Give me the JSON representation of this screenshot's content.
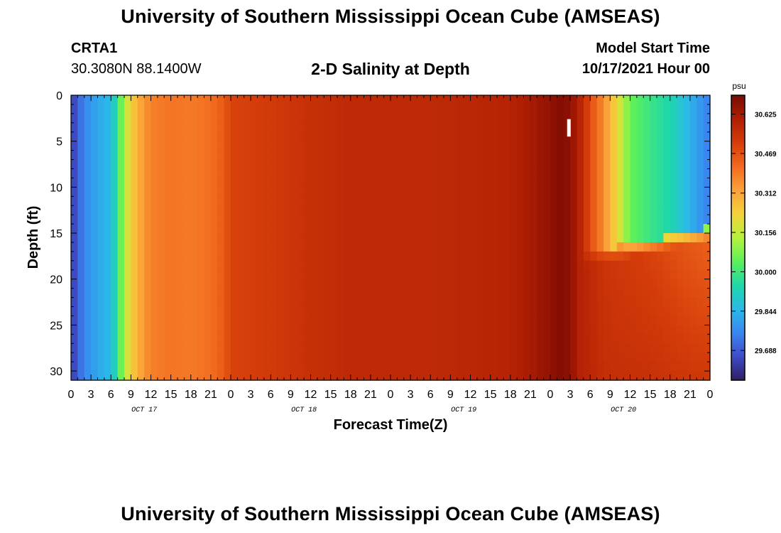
{
  "header": {
    "title": "University of Southern Mississippi Ocean Cube (AMSEAS)",
    "station_id": "CRTA1",
    "station_coords": "30.3080N  88.1400W",
    "plot_title": "2-D Salinity at Depth",
    "start_label": "Model Start Time",
    "start_value": "10/17/2021 Hour 00"
  },
  "footer": {
    "title": "University of Southern Mississippi Ocean Cube (AMSEAS)"
  },
  "chart_data": {
    "type": "heatmap",
    "title": "2-D Salinity at Depth",
    "xlabel": "Forecast Time(Z)",
    "ylabel": "Depth (ft)",
    "x_unit": "forecast hour from 10/17/2021 00Z",
    "xlim": [
      0,
      96
    ],
    "ylim": [
      0,
      31
    ],
    "y_inverted": true,
    "x_tick_labels": [
      "0",
      "3",
      "6",
      "9",
      "12",
      "15",
      "18",
      "21",
      "0",
      "3",
      "6",
      "9",
      "12",
      "15",
      "18",
      "21",
      "0",
      "3",
      "6",
      "9",
      "12",
      "15",
      "18",
      "21",
      "0",
      "3",
      "6",
      "9",
      "12",
      "15",
      "18",
      "21",
      "0"
    ],
    "x_tick_hours": [
      0,
      3,
      6,
      9,
      12,
      15,
      18,
      21,
      24,
      27,
      30,
      33,
      36,
      39,
      42,
      45,
      48,
      51,
      54,
      57,
      60,
      63,
      66,
      69,
      72,
      75,
      78,
      81,
      84,
      87,
      90,
      93,
      96
    ],
    "date_labels": [
      {
        "text": "OCT 17",
        "hour": 11
      },
      {
        "text": "OCT 18",
        "hour": 35
      },
      {
        "text": "OCT 19",
        "hour": 59
      },
      {
        "text": "OCT 20",
        "hour": 83
      }
    ],
    "y_ticks": [
      0,
      5,
      10,
      15,
      20,
      25,
      30
    ],
    "colorbar": {
      "unit": "psu",
      "min": 29.57,
      "max": 30.7,
      "tick_values": [
        29.688,
        29.844,
        30.0,
        30.156,
        30.312,
        30.469,
        30.625
      ],
      "tick_labels": [
        "29.688",
        "29.844",
        "30.000",
        "30.156",
        "30.312",
        "30.469",
        "30.625"
      ],
      "colors": [
        "#2e1e66",
        "#3e4cc6",
        "#3a86f0",
        "#2ab9e8",
        "#1fd8a8",
        "#5ef05a",
        "#b6f23c",
        "#f3d23a",
        "#fba23a",
        "#f26a1e",
        "#d43d0a",
        "#b01e04",
        "#7a0a02"
      ]
    },
    "surface_salinity_by_hour": [
      {
        "hour": 0,
        "value": 29.62
      },
      {
        "hour": 1,
        "value": 29.7
      },
      {
        "hour": 2,
        "value": 29.76
      },
      {
        "hour": 4,
        "value": 29.82
      },
      {
        "hour": 6,
        "value": 29.86
      },
      {
        "hour": 7,
        "value": 29.96
      },
      {
        "hour": 8,
        "value": 30.15
      },
      {
        "hour": 9,
        "value": 30.22
      },
      {
        "hour": 10,
        "value": 30.3
      },
      {
        "hour": 12,
        "value": 30.38
      },
      {
        "hour": 15,
        "value": 30.4
      },
      {
        "hour": 18,
        "value": 30.39
      },
      {
        "hour": 21,
        "value": 30.41
      },
      {
        "hour": 23,
        "value": 30.45
      },
      {
        "hour": 24,
        "value": 30.5
      },
      {
        "hour": 30,
        "value": 30.52
      },
      {
        "hour": 36,
        "value": 30.55
      },
      {
        "hour": 42,
        "value": 30.57
      },
      {
        "hour": 48,
        "value": 30.57
      },
      {
        "hour": 54,
        "value": 30.57
      },
      {
        "hour": 60,
        "value": 30.58
      },
      {
        "hour": 66,
        "value": 30.59
      },
      {
        "hour": 69,
        "value": 30.62
      },
      {
        "hour": 72,
        "value": 30.66
      },
      {
        "hour": 74,
        "value": 30.69
      },
      {
        "hour": 76,
        "value": 30.62
      },
      {
        "hour": 78,
        "value": 30.48
      },
      {
        "hour": 80,
        "value": 30.36
      },
      {
        "hour": 82,
        "value": 30.22
      },
      {
        "hour": 84,
        "value": 30.05
      },
      {
        "hour": 87,
        "value": 29.99
      },
      {
        "hour": 90,
        "value": 29.94
      },
      {
        "hour": 93,
        "value": 29.84
      },
      {
        "hour": 96,
        "value": 29.74
      }
    ],
    "bottom_salinity_late_period": [
      {
        "hour": 76,
        "value": 30.6
      },
      {
        "hour": 80,
        "value": 30.54
      },
      {
        "hour": 84,
        "value": 30.52
      },
      {
        "hour": 88,
        "value": 30.5
      },
      {
        "hour": 92,
        "value": 30.47
      },
      {
        "hour": 96,
        "value": 30.45
      }
    ],
    "marker": {
      "hour": 74.8,
      "depth_top": 2.6,
      "depth_bottom": 4.5,
      "color": "#ffffff"
    }
  }
}
